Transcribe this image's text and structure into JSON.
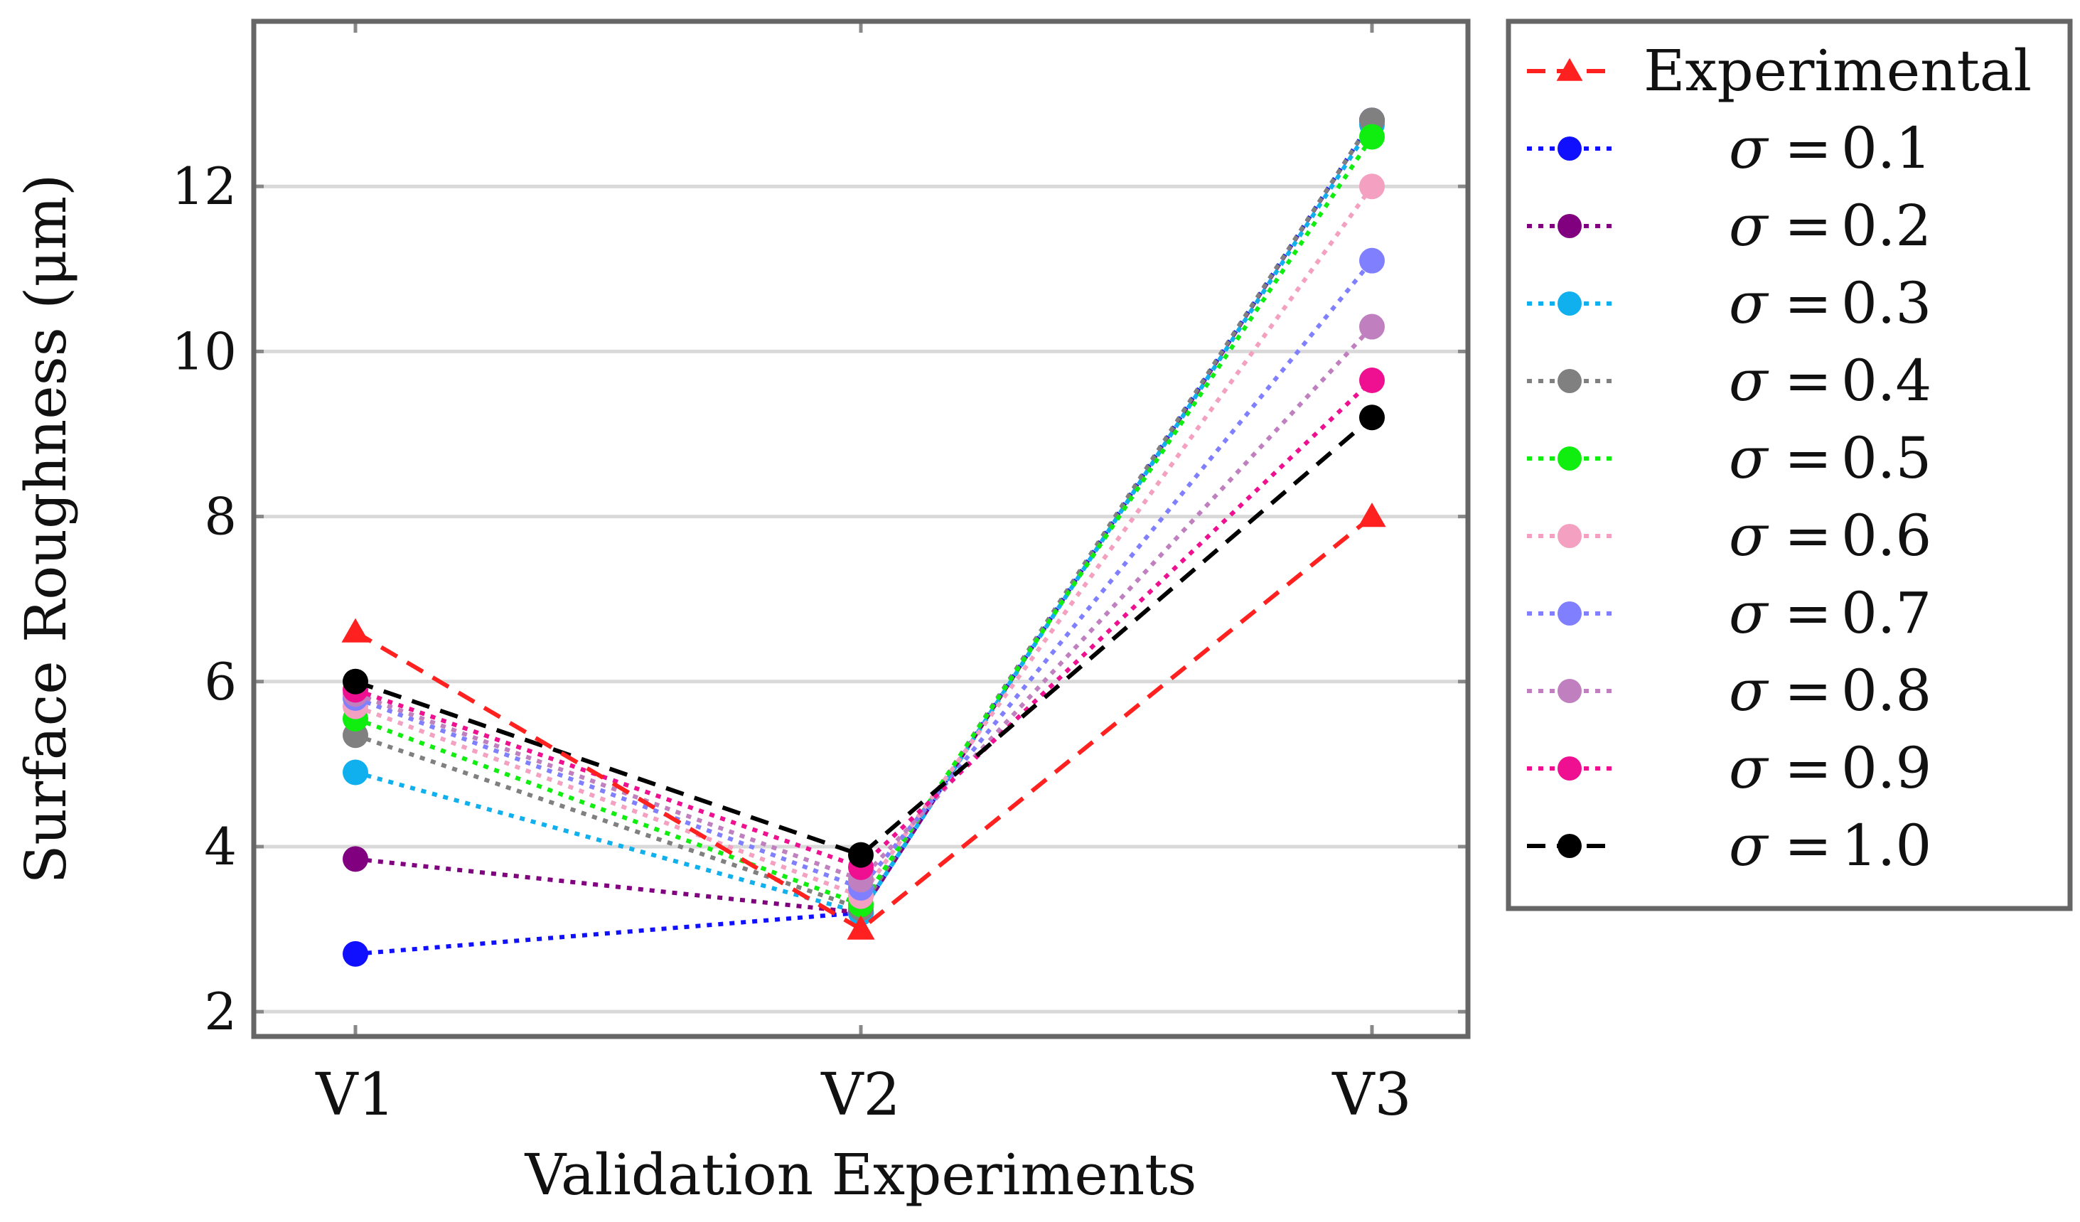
{
  "chart_data": {
    "type": "line",
    "xlabel": "Validation Experiments",
    "ylabel": "Surface Roughness (μm)",
    "categories": [
      "V1",
      "V2",
      "V3"
    ],
    "ylim": [
      1.7,
      14.0
    ],
    "yticks": [
      2,
      4,
      6,
      8,
      10,
      12
    ],
    "grid": "horizontal",
    "legend_position": "outside-right",
    "series": [
      {
        "name": "Experimental",
        "sigma": "",
        "values": [
          6.6,
          3.0,
          8.0
        ],
        "color": "#ff2020",
        "marker": "triangle",
        "dash": "dashed"
      },
      {
        "name": "σ = 0.1",
        "sigma": "0.1",
        "values": [
          2.7,
          3.2,
          12.8
        ],
        "color": "#1010ff",
        "marker": "circle",
        "dash": "dotted"
      },
      {
        "name": "σ = 0.2",
        "sigma": "0.2",
        "values": [
          3.85,
          3.2,
          12.8
        ],
        "color": "#800080",
        "marker": "circle",
        "dash": "dotted"
      },
      {
        "name": "σ = 0.3",
        "sigma": "0.3",
        "values": [
          4.9,
          3.2,
          12.75
        ],
        "color": "#10b0ee",
        "marker": "circle",
        "dash": "dotted"
      },
      {
        "name": "σ = 0.4",
        "sigma": "0.4",
        "values": [
          5.35,
          3.25,
          12.8
        ],
        "color": "#808080",
        "marker": "circle",
        "dash": "dotted"
      },
      {
        "name": "σ = 0.5",
        "sigma": "0.5",
        "values": [
          5.55,
          3.3,
          12.6
        ],
        "color": "#10ee10",
        "marker": "circle",
        "dash": "dotted"
      },
      {
        "name": "σ = 0.6",
        "sigma": "0.6",
        "values": [
          5.7,
          3.4,
          12.0
        ],
        "color": "#f4a0c0",
        "marker": "circle",
        "dash": "dotted"
      },
      {
        "name": "σ = 0.7",
        "sigma": "0.7",
        "values": [
          5.8,
          3.5,
          11.1
        ],
        "color": "#8080ff",
        "marker": "circle",
        "dash": "dotted"
      },
      {
        "name": "σ = 0.8",
        "sigma": "0.8",
        "values": [
          5.85,
          3.6,
          10.3
        ],
        "color": "#c080c0",
        "marker": "circle",
        "dash": "dotted"
      },
      {
        "name": "σ = 0.9",
        "sigma": "0.9",
        "values": [
          5.9,
          3.75,
          9.65
        ],
        "color": "#ee1090",
        "marker": "circle",
        "dash": "dotted"
      },
      {
        "name": "σ = 1.0",
        "sigma": "1.0",
        "values": [
          6.0,
          3.9,
          9.2
        ],
        "color": "#000000",
        "marker": "circle",
        "dash": "dashed"
      }
    ]
  },
  "legend": {
    "experimental_label": "Experimental",
    "sigma_symbol": "σ",
    "equals": "="
  }
}
